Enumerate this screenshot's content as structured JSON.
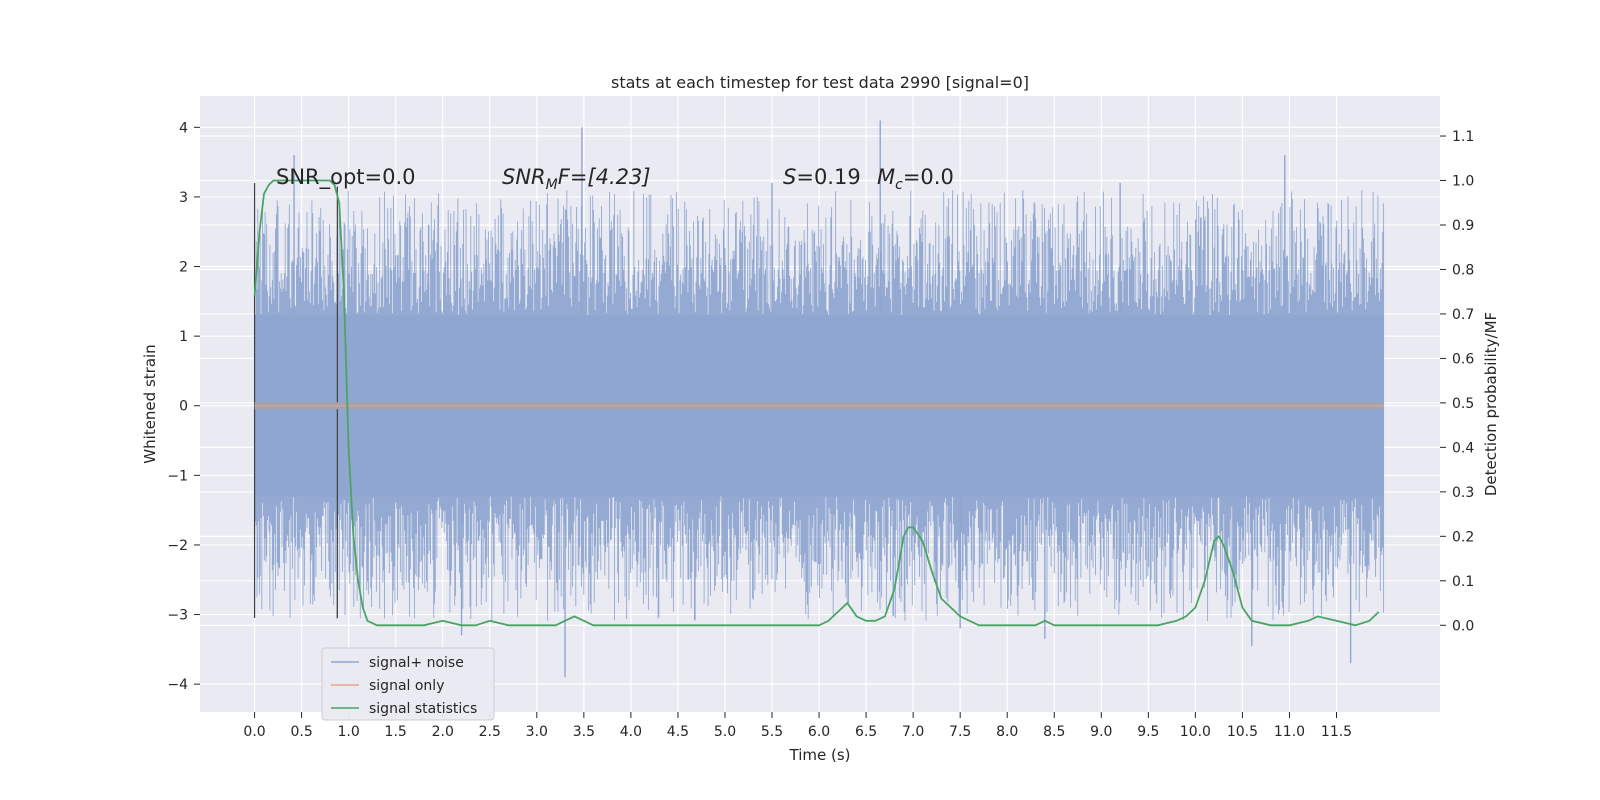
{
  "chart_data": {
    "type": "line",
    "title": "stats at each timestep for test data 2990 [signal=0]",
    "xlabel": "Time (s)",
    "ylabel_left": "Whitened strain",
    "ylabel_right": "Detection probability/MF",
    "xlim": [
      -0.58,
      12.6
    ],
    "ylim_left": [
      -4.4,
      4.45
    ],
    "ylim_right": [
      -0.195,
      1.19
    ],
    "grid": true,
    "legend_position": "lower-left",
    "x_ticks": [
      "0.0",
      "0.5",
      "1.0",
      "1.5",
      "2.0",
      "2.5",
      "3.0",
      "3.5",
      "4.0",
      "4.5",
      "5.0",
      "5.5",
      "6.0",
      "6.5",
      "7.0",
      "7.5",
      "8.0",
      "8.5",
      "9.0",
      "9.5",
      "10.0",
      "10.5",
      "11.0",
      "11.5"
    ],
    "y_ticks_left": [
      "−4",
      "−3",
      "−2",
      "−1",
      "0",
      "1",
      "2",
      "3",
      "4"
    ],
    "y_ticks_right": [
      "0.0",
      "0.1",
      "0.2",
      "0.3",
      "0.4",
      "0.5",
      "0.6",
      "0.7",
      "0.8",
      "0.9",
      "1.0",
      "1.1"
    ],
    "annotations": {
      "snr_opt": "SNR_opt=0.0",
      "snr_mf_main": "SNR",
      "snr_mf_sub": "M",
      "snr_mf_rest": "F=[4.23]",
      "s_main": "S",
      "s_rest": "=0.19",
      "mc_main": "M",
      "mc_sub": "c",
      "mc_rest": "=0.0"
    },
    "series": [
      {
        "name": "signal+ noise",
        "color": "#8fa6d0",
        "x_start": 0.0,
        "x_end": 12.0,
        "amplitude_typical": 1.2,
        "peak_high": [
          [
            0.42,
            3.6
          ],
          [
            3.48,
            4.0
          ],
          [
            6.65,
            4.1
          ],
          [
            10.95,
            3.6
          ],
          [
            1.85,
            2.6
          ],
          [
            5.5,
            3.2
          ],
          [
            9.2,
            3.2
          ]
        ],
        "peak_low": [
          [
            3.3,
            -3.9
          ],
          [
            11.65,
            -3.7
          ],
          [
            2.2,
            -3.3
          ],
          [
            10.6,
            -3.45
          ],
          [
            7.5,
            -3.2
          ],
          [
            8.4,
            -3.35
          ]
        ]
      },
      {
        "name": "signal only",
        "color": "#e8a58c",
        "x": [
          0.0,
          12.0
        ],
        "y": [
          0.0,
          0.0
        ]
      },
      {
        "name": "signal statistics",
        "color": "#4aa564",
        "x": [
          0.0,
          0.05,
          0.1,
          0.15,
          0.2,
          0.3,
          0.4,
          0.5,
          0.6,
          0.7,
          0.75,
          0.8,
          0.85,
          0.9,
          0.95,
          1.0,
          1.05,
          1.1,
          1.15,
          1.2,
          1.3,
          1.5,
          1.7,
          1.8,
          2.0,
          2.2,
          2.35,
          2.5,
          2.7,
          3.0,
          3.2,
          3.3,
          3.4,
          3.5,
          3.6,
          3.8,
          4.0,
          4.3,
          4.6,
          5.0,
          5.5,
          6.0,
          6.1,
          6.2,
          6.3,
          6.4,
          6.5,
          6.6,
          6.7,
          6.8,
          6.9,
          6.95,
          7.0,
          7.1,
          7.2,
          7.3,
          7.5,
          7.7,
          8.0,
          8.3,
          8.4,
          8.5,
          8.8,
          9.0,
          9.3,
          9.6,
          9.8,
          9.9,
          10.0,
          10.1,
          10.2,
          10.25,
          10.3,
          10.4,
          10.5,
          10.6,
          10.8,
          11.0,
          11.2,
          11.3,
          11.5,
          11.7,
          11.85,
          11.95
        ],
        "y": [
          0.74,
          0.88,
          0.97,
          0.99,
          1.0,
          1.0,
          1.0,
          1.0,
          1.0,
          1.0,
          1.0,
          1.0,
          0.99,
          0.95,
          0.75,
          0.4,
          0.2,
          0.1,
          0.04,
          0.01,
          0.0,
          0.0,
          0.0,
          0.0,
          0.01,
          0.0,
          0.0,
          0.01,
          0.0,
          0.0,
          0.0,
          0.01,
          0.02,
          0.01,
          0.0,
          0.0,
          0.0,
          0.0,
          0.0,
          0.0,
          0.0,
          0.0,
          0.01,
          0.03,
          0.05,
          0.02,
          0.01,
          0.01,
          0.02,
          0.08,
          0.2,
          0.22,
          0.22,
          0.19,
          0.12,
          0.06,
          0.02,
          0.0,
          0.0,
          0.0,
          0.01,
          0.0,
          0.0,
          0.0,
          0.0,
          0.0,
          0.01,
          0.02,
          0.04,
          0.1,
          0.19,
          0.2,
          0.18,
          0.12,
          0.04,
          0.01,
          0.0,
          0.0,
          0.01,
          0.02,
          0.01,
          0.0,
          0.01,
          0.03
        ]
      }
    ],
    "vertical_markers": [
      {
        "x": 0.0,
        "y_top": 3.2,
        "y_bottom": -3.05,
        "color": "#404040"
      },
      {
        "x": 0.88,
        "y_top": 3.15,
        "y_bottom": -3.05,
        "color": "#404040"
      }
    ]
  },
  "legend": {
    "items": [
      {
        "label": "signal+ noise",
        "color": "#8fa6d0"
      },
      {
        "label": "signal only",
        "color": "#e8a58c"
      },
      {
        "label": "signal statistics",
        "color": "#4aa564"
      }
    ]
  }
}
